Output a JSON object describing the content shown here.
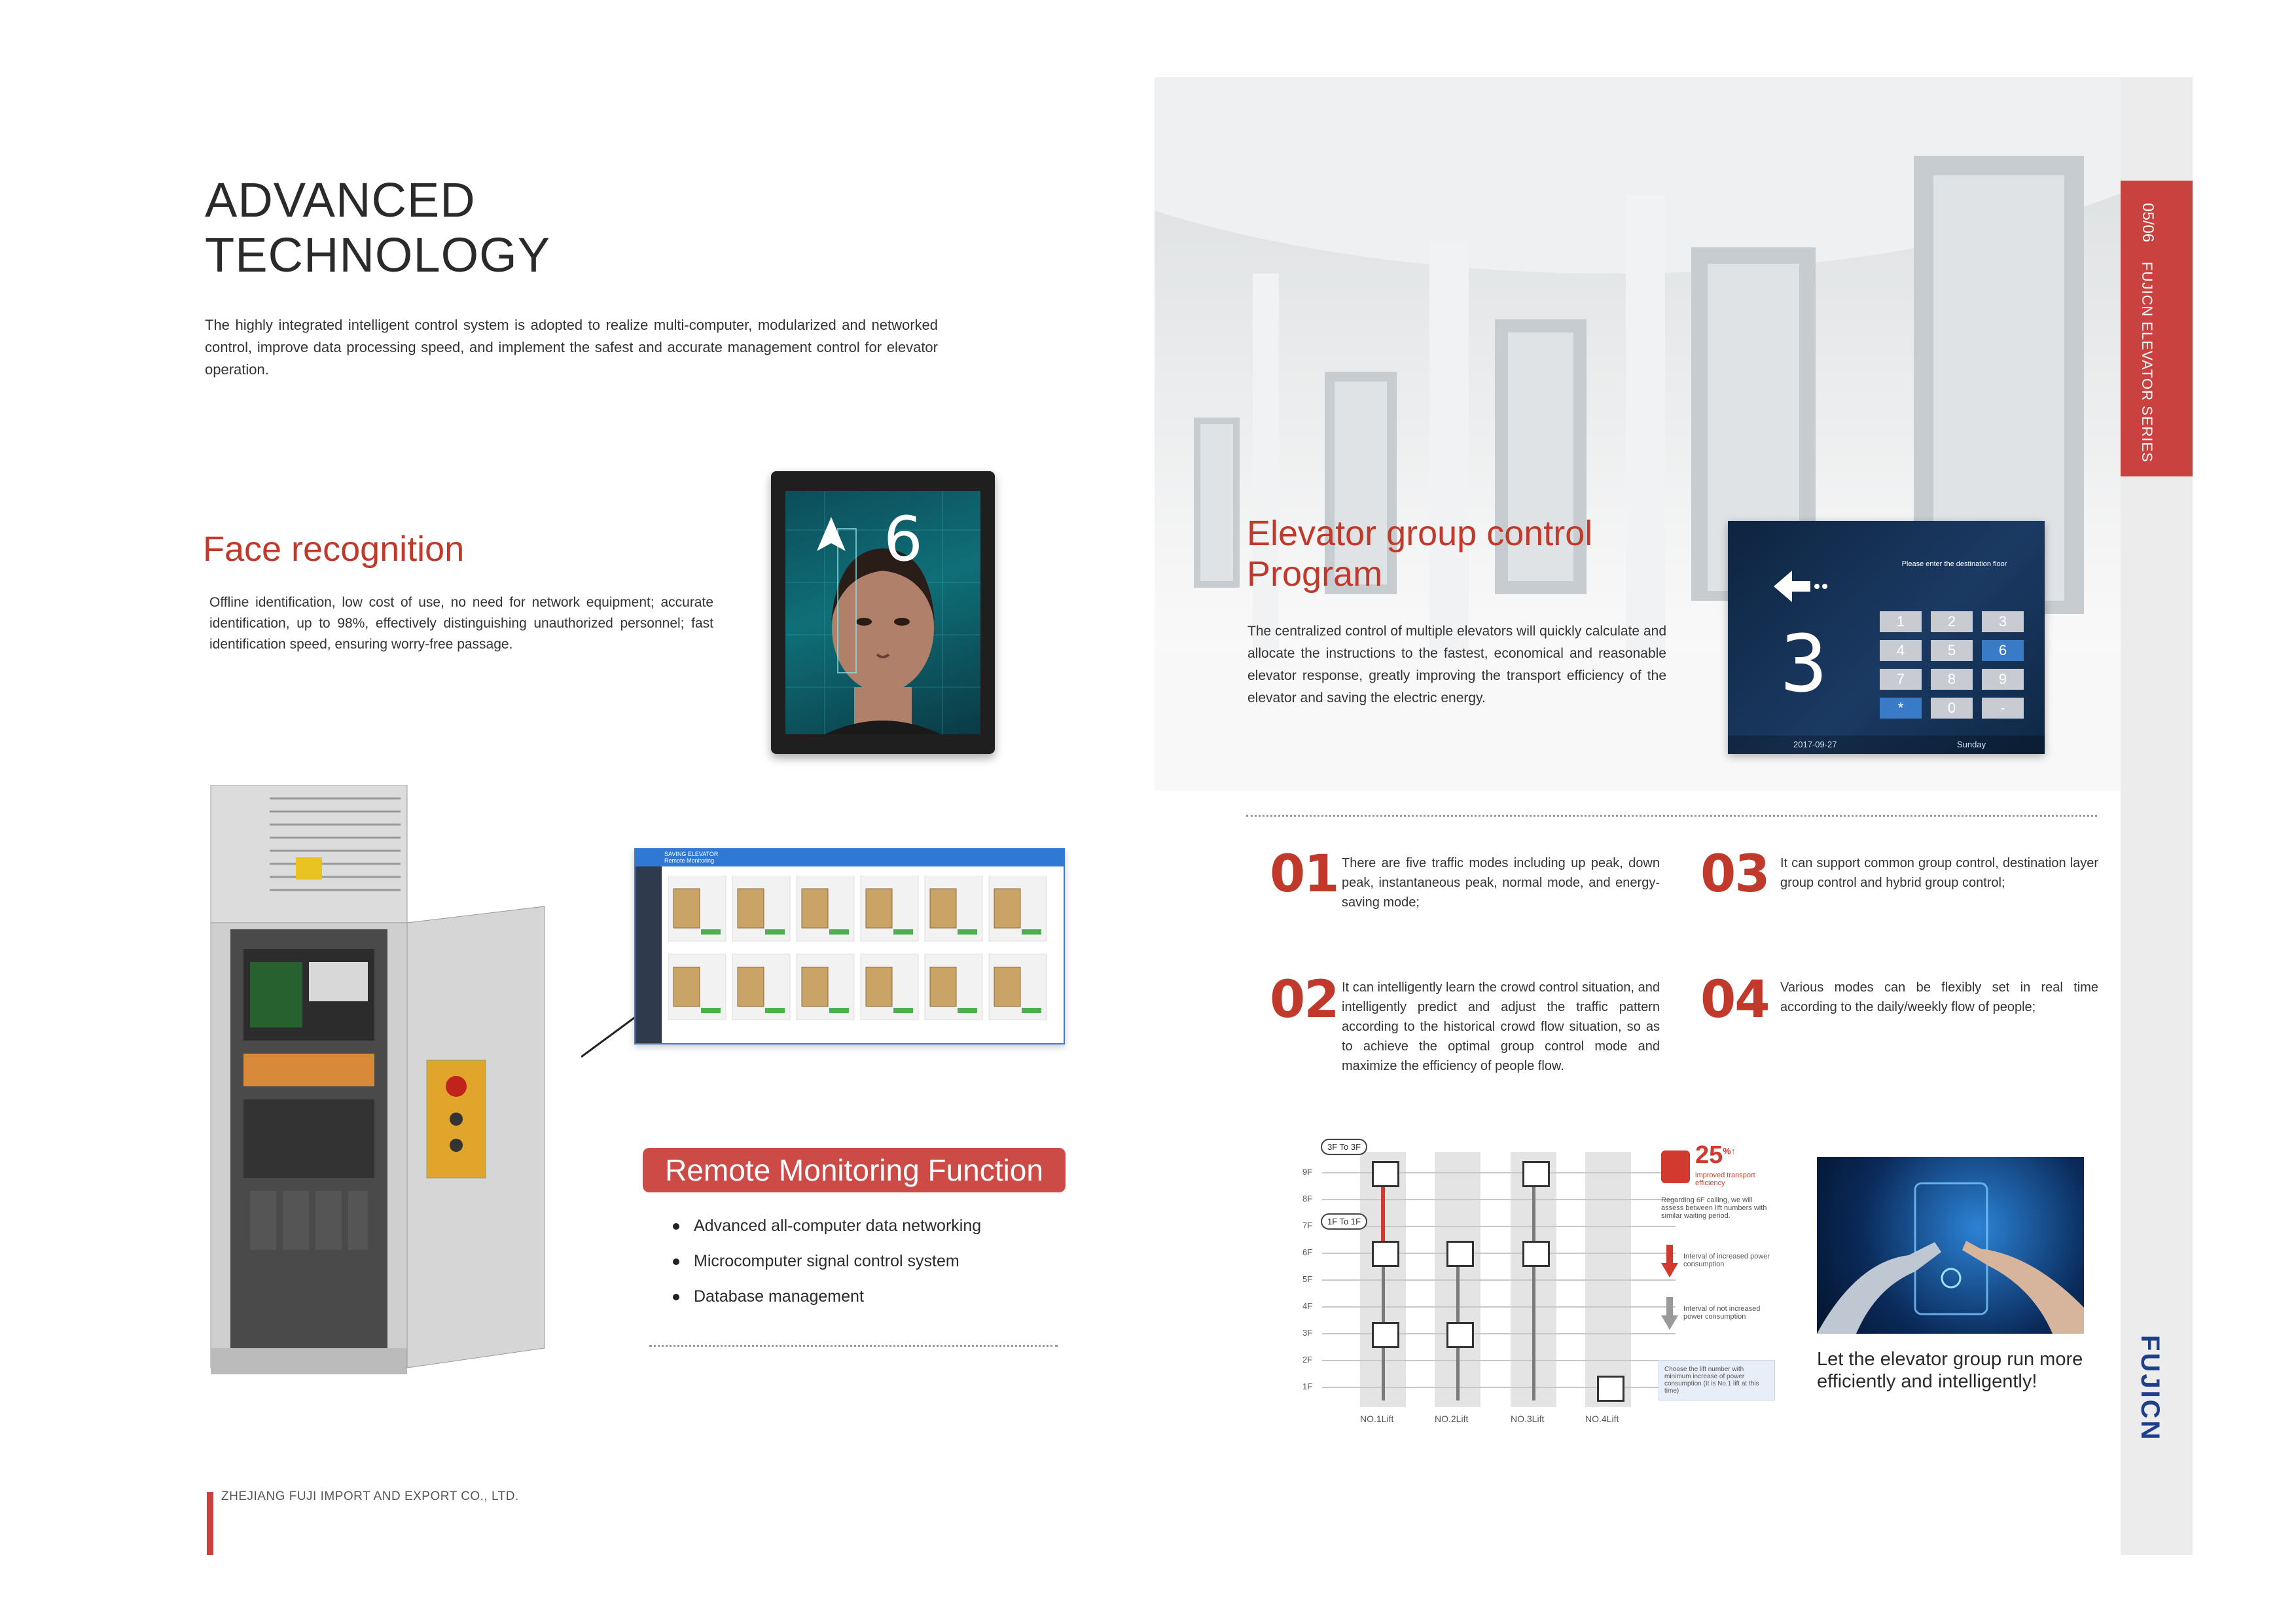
{
  "header": {
    "title_line1": "ADVANCED",
    "title_line2": "TECHNOLOGY"
  },
  "intro": "The highly integrated intelligent control system is adopted to realize multi-computer, modularized and networked control, improve data processing speed, and implement the safest and accurate management control for elevator operation.",
  "face": {
    "title": "Face recognition",
    "body": "Offline identification, low cost of use, no need for network equipment; accurate identification, up to 98%, effectively distinguishing unauthorized personnel; fast identification speed, ensuring worry-free passage.",
    "display_floor": "6"
  },
  "group": {
    "title_line1": "Elevator group control",
    "title_line2": "Program",
    "body": "The centralized control of multiple elevators will quickly calculate and allocate the instructions to the fastest, economical and reasonable elevator response, greatly improving the transport efficiency of the elevator and saving the electric energy."
  },
  "keypad": {
    "prompt": "Please enter the destination floor",
    "floor": "3",
    "keys": [
      "1",
      "2",
      "3",
      "4",
      "5",
      "6",
      "7",
      "8",
      "9",
      "*",
      "0",
      "-"
    ],
    "date": "2017-09-27",
    "day": "Sunday"
  },
  "sidebar": {
    "page": "05/06",
    "series": "FUJICN ELEVATOR SERIES",
    "brand": "FUJICN"
  },
  "features": [
    {
      "num": "01",
      "text": "There are five traffic modes including up peak, down peak, instantaneous peak, normal mode, and energy-saving mode;"
    },
    {
      "num": "02",
      "text": "It can intelligently learn the crowd control situation, and intelligently predict and adjust the traffic pattern according to the historical crowd flow situation, so as to achieve the optimal group control mode and maximize the efficiency of people flow."
    },
    {
      "num": "03",
      "text": "It can support common group control, destination layer group control and hybrid group control;"
    },
    {
      "num": "04",
      "text": "Various modes can be flexibly set in real time according to the daily/weekly flow of people;"
    }
  ],
  "remote": {
    "title": "Remote Monitoring Function",
    "bullets": [
      "Advanced all-computer data networking",
      "Microcomputer signal control system",
      "Database management"
    ],
    "screen_title": "SAVING ELEVATOR",
    "screen_subtitle": "Remote Monitoring"
  },
  "diagram": {
    "floors": [
      "9F",
      "8F",
      "7F",
      "6F",
      "5F",
      "4F",
      "3F",
      "2F",
      "1F"
    ],
    "lifts": [
      "NO.1Lift",
      "NO.2Lift",
      "NO.3Lift",
      "NO.4Lift"
    ],
    "bubble1": "3F To 3F",
    "bubble2": "1F To 1F",
    "percent": "25",
    "percent_unit": "%↑",
    "improve": "improved transport efficiency",
    "note1": "Regarding 6F calling, we will assess between lift numbers with similar waiting period.",
    "legend1": "Interval of increased power consumption",
    "legend2": "Interval of not increased power consumption",
    "note2": "Choose the lift number with minimum increase of power consumption (It is No.1 lift at this time)"
  },
  "tagline": "Let the elevator group run more efficiently and intelligently!",
  "footer": "ZHEJIANG FUJI IMPORT AND EXPORT CO., LTD."
}
